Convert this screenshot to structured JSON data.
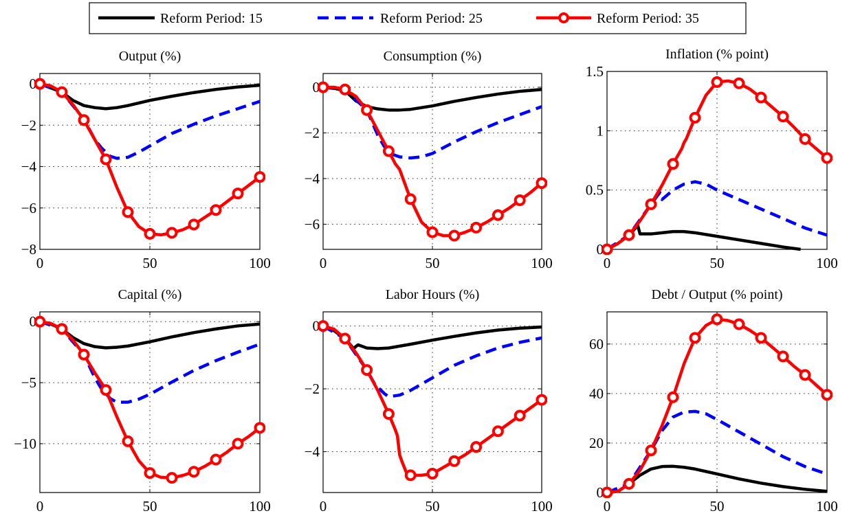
{
  "legend": {
    "entries": [
      {
        "label": "Reform Period: 15",
        "color": "#000000",
        "style": "solid",
        "marker": "none"
      },
      {
        "label": "Reform Period: 25",
        "color": "#0000ff",
        "style": "dashed",
        "marker": "none"
      },
      {
        "label": "Reform Period: 35",
        "color": "#ff0000",
        "style": "solid",
        "marker": "circle"
      }
    ]
  },
  "chart_data": [
    {
      "type": "line",
      "title": "Output (%)",
      "xlim": [
        0,
        100
      ],
      "ylim": [
        -8,
        0.5
      ],
      "xticks": [
        {
          "v": 0,
          "label": "0"
        },
        {
          "v": 50,
          "label": "50"
        },
        {
          "v": 100,
          "label": "100"
        }
      ],
      "yticks": [
        {
          "v": -8,
          "label": "−8"
        },
        {
          "v": -6,
          "label": "−6"
        },
        {
          "v": -4,
          "label": "−4"
        },
        {
          "v": -2,
          "label": "−2"
        },
        {
          "v": 0,
          "label": "0"
        }
      ],
      "grid": true,
      "series": [
        {
          "name": "Reform Period: 15",
          "x": [
            0,
            5,
            10,
            15,
            20,
            25,
            30,
            35,
            40,
            50,
            60,
            70,
            80,
            90,
            100
          ],
          "y": [
            0,
            -0.2,
            -0.4,
            -0.8,
            -1.05,
            -1.15,
            -1.2,
            -1.15,
            -1.05,
            -0.8,
            -0.6,
            -0.42,
            -0.27,
            -0.15,
            -0.07
          ]
        },
        {
          "name": "Reform Period: 25",
          "x": [
            0,
            10,
            20,
            25,
            28,
            32,
            35,
            40,
            45,
            50,
            60,
            70,
            80,
            90,
            100
          ],
          "y": [
            0,
            -0.4,
            -1.7,
            -2.7,
            -3.1,
            -3.5,
            -3.6,
            -3.55,
            -3.3,
            -3.0,
            -2.4,
            -1.95,
            -1.55,
            -1.2,
            -0.85
          ]
        },
        {
          "name": "Reform Period: 35",
          "x": [
            0,
            5,
            10,
            15,
            20,
            25,
            30,
            35,
            40,
            45,
            50,
            55,
            60,
            65,
            70,
            75,
            80,
            85,
            90,
            95,
            100
          ],
          "y": [
            0,
            -0.1,
            -0.4,
            -1.0,
            -1.75,
            -2.7,
            -3.65,
            -5.0,
            -6.2,
            -6.9,
            -7.25,
            -7.3,
            -7.2,
            -7.05,
            -6.8,
            -6.45,
            -6.1,
            -5.7,
            -5.3,
            -4.9,
            -4.5
          ]
        }
      ],
      "markers_series": 2,
      "marker_x": [
        0,
        10,
        20,
        30,
        40,
        50,
        60,
        70,
        80,
        90,
        100
      ]
    },
    {
      "type": "line",
      "title": "Consumption (%)",
      "xlim": [
        0,
        100
      ],
      "ylim": [
        -7.1,
        0.6
      ],
      "xticks": [
        {
          "v": 0,
          "label": "0"
        },
        {
          "v": 50,
          "label": "50"
        },
        {
          "v": 100,
          "label": "100"
        }
      ],
      "yticks": [
        {
          "v": -6,
          "label": "−6"
        },
        {
          "v": -4,
          "label": "−4"
        },
        {
          "v": -2,
          "label": "−2"
        },
        {
          "v": 0,
          "label": "0"
        }
      ],
      "grid": true,
      "series": [
        {
          "name": "Reform Period: 15",
          "x": [
            0,
            5,
            10,
            15,
            20,
            25,
            30,
            35,
            40,
            50,
            60,
            70,
            80,
            90,
            100
          ],
          "y": [
            0,
            -0.05,
            -0.15,
            -0.6,
            -0.85,
            -0.95,
            -1.0,
            -1.0,
            -0.97,
            -0.82,
            -0.62,
            -0.45,
            -0.3,
            -0.18,
            -0.1
          ]
        },
        {
          "name": "Reform Period: 25",
          "x": [
            0,
            10,
            20,
            25,
            28,
            32,
            35,
            40,
            45,
            50,
            60,
            70,
            80,
            90,
            100
          ],
          "y": [
            0,
            -0.1,
            -1.0,
            -2.1,
            -2.6,
            -2.95,
            -3.05,
            -3.1,
            -3.05,
            -2.9,
            -2.4,
            -1.95,
            -1.55,
            -1.2,
            -0.85
          ]
        },
        {
          "name": "Reform Period: 35",
          "x": [
            0,
            5,
            10,
            15,
            20,
            25,
            30,
            33,
            35,
            40,
            45,
            50,
            55,
            60,
            65,
            70,
            75,
            80,
            85,
            90,
            95,
            100
          ],
          "y": [
            0,
            0,
            -0.1,
            -0.4,
            -1.0,
            -1.9,
            -2.8,
            -3.35,
            -3.6,
            -4.9,
            -5.9,
            -6.35,
            -6.5,
            -6.5,
            -6.35,
            -6.15,
            -5.9,
            -5.6,
            -5.3,
            -4.95,
            -4.6,
            -4.2
          ]
        }
      ],
      "markers_series": 2,
      "marker_x": [
        0,
        10,
        20,
        30,
        40,
        50,
        60,
        70,
        80,
        90,
        100
      ]
    },
    {
      "type": "line",
      "title": "Inflation (% point)",
      "xlim": [
        0,
        100
      ],
      "ylim": [
        0,
        1.5
      ],
      "xticks": [
        {
          "v": 0,
          "label": "0"
        },
        {
          "v": 50,
          "label": "50"
        },
        {
          "v": 100,
          "label": "100"
        }
      ],
      "yticks": [
        {
          "v": 0,
          "label": "0"
        },
        {
          "v": 0.5,
          "label": "0.5"
        },
        {
          "v": 1,
          "label": "1"
        },
        {
          "v": 1.5,
          "label": "1.5"
        }
      ],
      "grid": true,
      "series": [
        {
          "name": "Reform Period: 15",
          "x": [
            0,
            5,
            10,
            14,
            15,
            20,
            25,
            30,
            35,
            40,
            50,
            60,
            70,
            80,
            88
          ],
          "y": [
            0,
            0.05,
            0.12,
            0.2,
            0.13,
            0.13,
            0.14,
            0.15,
            0.15,
            0.14,
            0.11,
            0.08,
            0.05,
            0.02,
            0.0
          ]
        },
        {
          "name": "Reform Period: 25",
          "x": [
            0,
            10,
            20,
            24,
            25,
            30,
            35,
            40,
            45,
            50,
            60,
            70,
            80,
            90,
            100
          ],
          "y": [
            0,
            0.12,
            0.38,
            0.48,
            0.42,
            0.5,
            0.55,
            0.57,
            0.55,
            0.5,
            0.42,
            0.34,
            0.26,
            0.18,
            0.12
          ]
        },
        {
          "name": "Reform Period: 35",
          "x": [
            0,
            5,
            10,
            15,
            20,
            25,
            30,
            34,
            35,
            36,
            40,
            45,
            50,
            55,
            60,
            65,
            70,
            75,
            80,
            85,
            90,
            95,
            100
          ],
          "y": [
            0,
            0.05,
            0.12,
            0.24,
            0.38,
            0.54,
            0.72,
            0.85,
            0.9,
            0.93,
            1.11,
            1.3,
            1.41,
            1.42,
            1.4,
            1.35,
            1.28,
            1.2,
            1.12,
            1.03,
            0.93,
            0.85,
            0.77
          ]
        }
      ],
      "markers_series": 2,
      "marker_x": [
        0,
        10,
        20,
        30,
        40,
        50,
        60,
        70,
        80,
        90,
        100
      ]
    },
    {
      "type": "line",
      "title": "Capital (%)",
      "xlim": [
        0,
        100
      ],
      "ylim": [
        -14,
        0.8
      ],
      "xticks": [
        {
          "v": 0,
          "label": "0"
        },
        {
          "v": 50,
          "label": "50"
        },
        {
          "v": 100,
          "label": "100"
        }
      ],
      "yticks": [
        {
          "v": -10,
          "label": "−10"
        },
        {
          "v": -5,
          "label": "−5"
        },
        {
          "v": 0,
          "label": "0"
        }
      ],
      "grid": true,
      "series": [
        {
          "name": "Reform Period: 15",
          "x": [
            0,
            5,
            10,
            15,
            20,
            25,
            30,
            35,
            40,
            50,
            60,
            70,
            80,
            90,
            100
          ],
          "y": [
            0,
            -0.2,
            -0.6,
            -1.3,
            -1.8,
            -2.05,
            -2.15,
            -2.1,
            -2.0,
            -1.65,
            -1.25,
            -0.9,
            -0.6,
            -0.35,
            -0.2
          ]
        },
        {
          "name": "Reform Period: 25",
          "x": [
            0,
            10,
            20,
            25,
            28,
            32,
            35,
            40,
            45,
            50,
            60,
            70,
            80,
            90,
            100
          ],
          "y": [
            0,
            -0.6,
            -2.7,
            -4.6,
            -5.5,
            -6.3,
            -6.6,
            -6.6,
            -6.35,
            -5.95,
            -4.95,
            -4.0,
            -3.2,
            -2.5,
            -1.85
          ]
        },
        {
          "name": "Reform Period: 35",
          "x": [
            0,
            5,
            10,
            15,
            20,
            25,
            30,
            35,
            40,
            45,
            50,
            55,
            60,
            65,
            70,
            75,
            80,
            85,
            90,
            95,
            100
          ],
          "y": [
            0,
            -0.15,
            -0.6,
            -1.5,
            -2.7,
            -4.2,
            -5.6,
            -7.8,
            -9.8,
            -11.4,
            -12.4,
            -12.75,
            -12.8,
            -12.6,
            -12.3,
            -11.85,
            -11.3,
            -10.7,
            -10.0,
            -9.4,
            -8.7
          ]
        }
      ],
      "markers_series": 2,
      "marker_x": [
        0,
        10,
        20,
        30,
        40,
        50,
        60,
        70,
        80,
        90,
        100
      ]
    },
    {
      "type": "line",
      "title": "Labor Hours (%)",
      "xlim": [
        0,
        100
      ],
      "ylim": [
        -5.3,
        0.45
      ],
      "xticks": [
        {
          "v": 0,
          "label": "0"
        },
        {
          "v": 50,
          "label": "50"
        },
        {
          "v": 100,
          "label": "100"
        }
      ],
      "yticks": [
        {
          "v": -4,
          "label": "−4"
        },
        {
          "v": -2,
          "label": "−2"
        },
        {
          "v": 0,
          "label": "0"
        }
      ],
      "grid": true,
      "series": [
        {
          "name": "Reform Period: 15",
          "x": [
            0,
            5,
            10,
            14,
            15,
            16,
            18,
            20,
            25,
            30,
            40,
            50,
            60,
            70,
            80,
            90,
            100
          ],
          "y": [
            0,
            -0.15,
            -0.4,
            -0.72,
            -0.65,
            -0.6,
            -0.65,
            -0.7,
            -0.72,
            -0.7,
            -0.58,
            -0.45,
            -0.33,
            -0.22,
            -0.13,
            -0.07,
            -0.03
          ]
        },
        {
          "name": "Reform Period: 25",
          "x": [
            0,
            10,
            20,
            24,
            25,
            28,
            30,
            35,
            40,
            45,
            50,
            60,
            70,
            80,
            90,
            100
          ],
          "y": [
            0,
            -0.4,
            -1.4,
            -1.9,
            -1.95,
            -2.15,
            -2.25,
            -2.2,
            -2.05,
            -1.85,
            -1.65,
            -1.25,
            -0.95,
            -0.7,
            -0.52,
            -0.38
          ]
        },
        {
          "name": "Reform Period: 35",
          "x": [
            0,
            5,
            10,
            15,
            20,
            25,
            30,
            33,
            34,
            35,
            36,
            38,
            40,
            45,
            50,
            55,
            60,
            65,
            70,
            75,
            80,
            85,
            90,
            95,
            100
          ],
          "y": [
            0,
            -0.1,
            -0.4,
            -0.85,
            -1.4,
            -2.05,
            -2.8,
            -3.3,
            -3.5,
            -4.1,
            -4.3,
            -4.65,
            -4.75,
            -4.75,
            -4.7,
            -4.5,
            -4.3,
            -4.1,
            -3.85,
            -3.6,
            -3.35,
            -3.1,
            -2.85,
            -2.6,
            -2.35
          ]
        }
      ],
      "markers_series": 2,
      "marker_x": [
        0,
        10,
        20,
        30,
        40,
        50,
        60,
        70,
        80,
        90,
        100
      ]
    },
    {
      "type": "line",
      "title": "Debt / Output (% point)",
      "xlim": [
        0,
        100
      ],
      "ylim": [
        0,
        73
      ],
      "xticks": [
        {
          "v": 0,
          "label": "0"
        },
        {
          "v": 50,
          "label": "50"
        },
        {
          "v": 100,
          "label": "100"
        }
      ],
      "yticks": [
        {
          "v": 0,
          "label": "0"
        },
        {
          "v": 20,
          "label": "20"
        },
        {
          "v": 40,
          "label": "40"
        },
        {
          "v": 60,
          "label": "60"
        }
      ],
      "grid": true,
      "series": [
        {
          "name": "Reform Period: 15",
          "x": [
            0,
            5,
            10,
            15,
            20,
            25,
            30,
            35,
            40,
            50,
            60,
            70,
            80,
            90,
            100
          ],
          "y": [
            0,
            0.5,
            3.5,
            7.0,
            9.5,
            10.5,
            10.6,
            10.2,
            9.5,
            7.5,
            5.5,
            3.8,
            2.4,
            1.3,
            0.5
          ]
        },
        {
          "name": "Reform Period: 25",
          "x": [
            0,
            10,
            20,
            25,
            30,
            35,
            40,
            45,
            50,
            60,
            70,
            80,
            90,
            100
          ],
          "y": [
            0,
            3.5,
            17.0,
            25.0,
            30.5,
            32.5,
            32.8,
            31.8,
            29.5,
            24.5,
            19.5,
            14.5,
            10.5,
            7.5
          ]
        },
        {
          "name": "Reform Period: 35",
          "x": [
            0,
            5,
            10,
            15,
            20,
            25,
            30,
            35,
            40,
            45,
            50,
            55,
            60,
            65,
            70,
            75,
            80,
            85,
            90,
            95,
            100
          ],
          "y": [
            0,
            0.5,
            3.5,
            9.0,
            17.0,
            27.0,
            38.5,
            52.0,
            62.5,
            67.5,
            70.0,
            69.5,
            68.0,
            65.5,
            62.5,
            58.8,
            55.0,
            51.0,
            47.5,
            43.5,
            39.5
          ]
        }
      ],
      "markers_series": 2,
      "marker_x": [
        0,
        10,
        20,
        30,
        40,
        50,
        60,
        70,
        80,
        90,
        100
      ]
    }
  ]
}
